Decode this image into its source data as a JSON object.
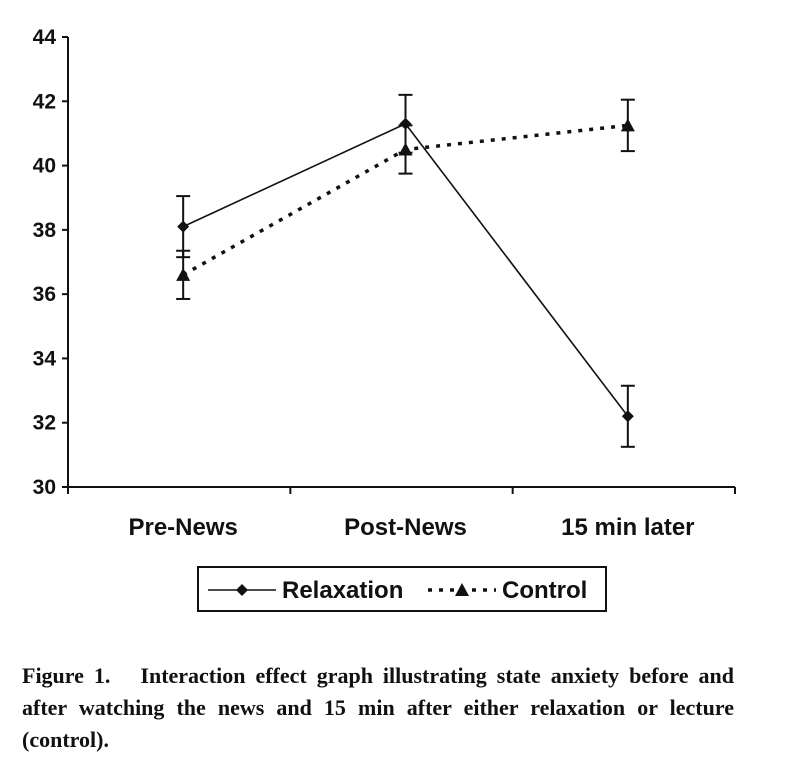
{
  "chart_data": {
    "type": "line",
    "categories": [
      "Pre-News",
      "Post-News",
      "15 min later"
    ],
    "series": [
      {
        "name": "Relaxation",
        "values": [
          38.1,
          41.3,
          32.2
        ],
        "error": [
          0.95,
          0.9,
          0.95
        ],
        "marker": "diamond",
        "line": "solid"
      },
      {
        "name": "Control",
        "values": [
          36.6,
          40.5,
          41.25
        ],
        "error": [
          0.75,
          0.75,
          0.8
        ],
        "marker": "triangle",
        "line": "dotted"
      }
    ],
    "ylim": [
      30,
      44
    ],
    "yticks": [
      "30",
      "32",
      "34",
      "36",
      "38",
      "40",
      "42",
      "44"
    ],
    "xlabel": "",
    "ylabel": "",
    "title": "",
    "grid": false,
    "legend_position": "bottom",
    "color": "#111111"
  },
  "caption": {
    "label": "Figure 1.",
    "text": "Interaction effect graph illustrating state anxiety before and after watching the news and 15 min after either relaxation or lecture (control)."
  }
}
